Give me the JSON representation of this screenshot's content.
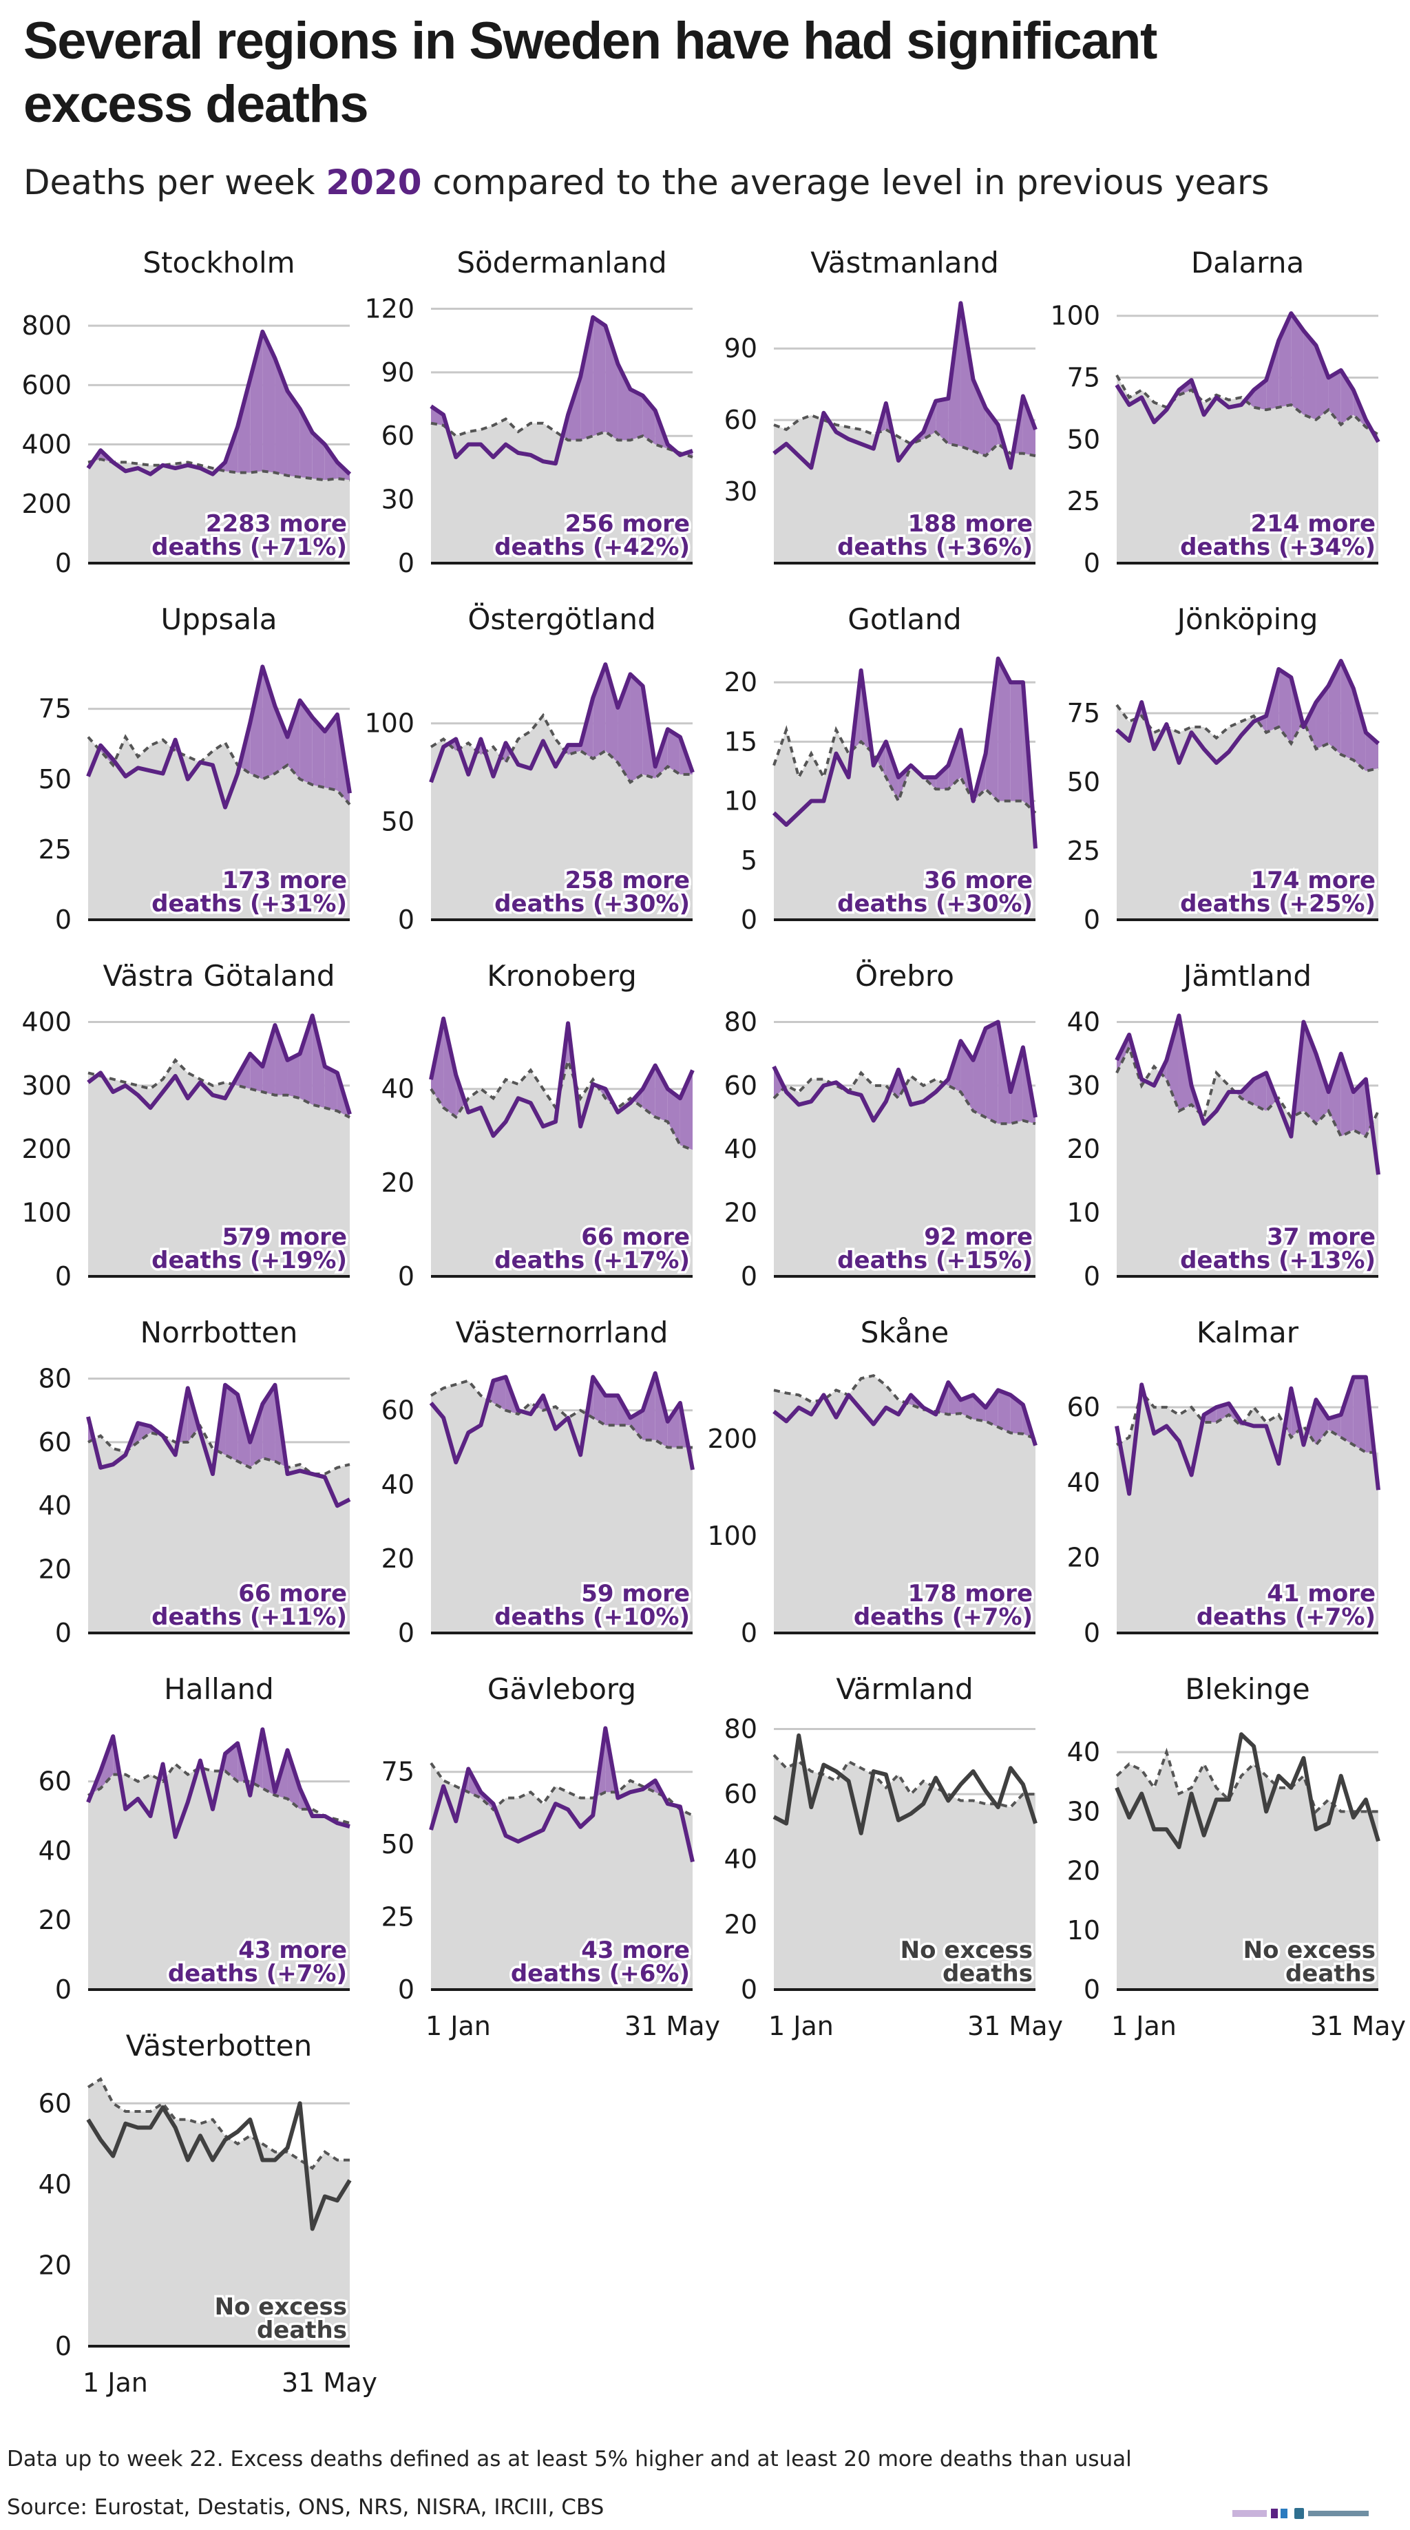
{
  "title": "Several regions in Sweden have had significant excess deaths",
  "subtitle": {
    "prefix": "Deaths per week ",
    "highlight": "2020",
    "suffix": " compared to the average level in previous years"
  },
  "footnote": "Data up to week 22. Excess deaths defined as at least 5% higher and at least 20 more deaths than usual",
  "source": "Source: Eurostat, Destatis, ONS, NRS, NISRA, IRCIII, CBS",
  "colors": {
    "excess_line": "#5b2383",
    "excess_fill": "#a77fc0",
    "normal_line": "#404040",
    "baseline_fill": "#d9d9d9",
    "baseline_line": "#555555",
    "grid": "#c8c8c8"
  },
  "chart_data": [
    {
      "type": "area",
      "region": "Stockholm",
      "excess": true,
      "label_line1": "2283 more",
      "label_line2": "deaths (+71%)",
      "x_labels": [],
      "yticks": [
        0,
        200,
        400,
        600,
        800
      ],
      "ylim": [
        0,
        900
      ],
      "values": [
        320,
        380,
        340,
        310,
        320,
        300,
        330,
        320,
        330,
        320,
        300,
        340,
        460,
        620,
        780,
        690,
        580,
        520,
        440,
        400,
        340,
        300
      ],
      "baseline": [
        340,
        350,
        340,
        340,
        335,
        330,
        330,
        335,
        340,
        330,
        320,
        310,
        305,
        305,
        310,
        305,
        295,
        290,
        285,
        280,
        285,
        280
      ]
    },
    {
      "type": "area",
      "region": "Södermanland",
      "excess": true,
      "label_line1": "256 more",
      "label_line2": "deaths (+42%)",
      "x_labels": [],
      "yticks": [
        0,
        30,
        60,
        90,
        120
      ],
      "ylim": [
        0,
        126
      ],
      "values": [
        74,
        70,
        50,
        56,
        56,
        50,
        56,
        52,
        51,
        48,
        47,
        70,
        88,
        116,
        112,
        94,
        82,
        79,
        72,
        56,
        51,
        53
      ],
      "baseline": [
        66,
        65,
        60,
        62,
        63,
        65,
        68,
        62,
        66,
        66,
        62,
        58,
        58,
        60,
        62,
        58,
        58,
        60,
        56,
        54,
        52,
        50
      ]
    },
    {
      "type": "area",
      "region": "Västmanland",
      "excess": true,
      "label_line1": "188 more",
      "label_line2": "deaths (+36%)",
      "x_labels": [],
      "yticks": [
        30,
        60,
        90
      ],
      "ylim": [
        0,
        112
      ],
      "values": [
        46,
        50,
        45,
        40,
        63,
        55,
        52,
        50,
        48,
        67,
        43,
        50,
        55,
        68,
        69,
        109,
        77,
        65,
        58,
        40,
        70,
        56
      ],
      "baseline": [
        58,
        56,
        60,
        62,
        60,
        58,
        57,
        56,
        54,
        56,
        53,
        50,
        52,
        55,
        50,
        49,
        47,
        45,
        50,
        46,
        46,
        45
      ]
    },
    {
      "type": "area",
      "region": "Dalarna",
      "excess": true,
      "label_line1": "214 more",
      "label_line2": "deaths (+34%)",
      "x_labels": [],
      "yticks": [
        0,
        25,
        50,
        75,
        100
      ],
      "ylim": [
        0,
        108
      ],
      "values": [
        72,
        64,
        67,
        57,
        62,
        70,
        74,
        60,
        67,
        63,
        64,
        70,
        74,
        90,
        101,
        94,
        88,
        75,
        78,
        70,
        58,
        49
      ],
      "baseline": [
        76,
        67,
        70,
        65,
        63,
        68,
        70,
        65,
        68,
        66,
        67,
        63,
        62,
        63,
        64,
        60,
        58,
        62,
        56,
        60,
        55,
        52
      ]
    },
    {
      "type": "area",
      "region": "Uppsala",
      "excess": true,
      "label_line1": "173 more",
      "label_line2": "deaths (+31%)",
      "x_labels": [],
      "yticks": [
        0,
        25,
        50,
        75
      ],
      "ylim": [
        0,
        95
      ],
      "values": [
        51,
        62,
        57,
        51,
        54,
        53,
        52,
        64,
        50,
        56,
        55,
        40,
        52,
        70,
        90,
        76,
        65,
        78,
        72,
        67,
        73,
        45
      ],
      "baseline": [
        65,
        60,
        55,
        65,
        58,
        62,
        64,
        60,
        58,
        56,
        60,
        63,
        55,
        52,
        50,
        52,
        55,
        50,
        48,
        47,
        46,
        41
      ]
    },
    {
      "type": "area",
      "region": "Östergötland",
      "excess": true,
      "label_line1": "258 more",
      "label_line2": "deaths (+30%)",
      "x_labels": [],
      "yticks": [
        0,
        50,
        100
      ],
      "ylim": [
        0,
        136
      ],
      "values": [
        70,
        88,
        92,
        74,
        92,
        73,
        90,
        79,
        77,
        91,
        78,
        89,
        89,
        113,
        130,
        108,
        125,
        119,
        78,
        97,
        93,
        75
      ],
      "baseline": [
        88,
        92,
        86,
        90,
        84,
        88,
        80,
        92,
        96,
        104,
        92,
        84,
        86,
        82,
        86,
        80,
        70,
        74,
        72,
        78,
        74,
        74
      ]
    },
    {
      "type": "area",
      "region": "Gotland",
      "excess": true,
      "label_line1": "36 more",
      "label_line2": "deaths (+30%)",
      "x_labels": [],
      "yticks": [
        0,
        5,
        10,
        15,
        20
      ],
      "ylim": [
        0,
        22.5
      ],
      "values": [
        9,
        8,
        9,
        10,
        10,
        14,
        12,
        21,
        13,
        15,
        12,
        13,
        12,
        12,
        13,
        16,
        10,
        14,
        22,
        20,
        20,
        6
      ],
      "baseline": [
        13,
        16,
        12,
        14,
        12,
        16,
        14,
        15,
        14,
        12,
        10,
        13,
        12,
        11,
        11,
        12,
        10,
        11,
        10,
        10,
        10,
        9
      ]
    },
    {
      "type": "area",
      "region": "Jönköping",
      "excess": true,
      "label_line1": "174 more",
      "label_line2": "deaths (+25%)",
      "x_labels": [],
      "yticks": [
        0,
        25,
        50,
        75
      ],
      "ylim": [
        0,
        97
      ],
      "values": [
        69,
        65,
        79,
        62,
        71,
        57,
        68,
        62,
        57,
        61,
        67,
        72,
        74,
        91,
        88,
        70,
        79,
        85,
        94,
        84,
        68,
        64
      ],
      "baseline": [
        78,
        72,
        74,
        68,
        70,
        68,
        70,
        70,
        66,
        70,
        72,
        74,
        68,
        70,
        64,
        72,
        62,
        64,
        60,
        58,
        54,
        55
      ]
    },
    {
      "type": "area",
      "region": "Västra Götaland",
      "excess": true,
      "label_line1": "579 more",
      "label_line2": "deaths (+19%)",
      "x_labels": [],
      "yticks": [
        0,
        100,
        200,
        300,
        400
      ],
      "ylim": [
        0,
        420
      ],
      "values": [
        305,
        320,
        290,
        300,
        285,
        265,
        290,
        315,
        280,
        305,
        285,
        280,
        315,
        350,
        330,
        395,
        340,
        350,
        410,
        330,
        320,
        255
      ],
      "baseline": [
        320,
        315,
        310,
        305,
        300,
        295,
        310,
        340,
        320,
        310,
        300,
        305,
        300,
        295,
        290,
        285,
        285,
        280,
        270,
        265,
        260,
        250
      ]
    },
    {
      "type": "area",
      "region": "Kronoberg",
      "excess": true,
      "label_line1": "66 more",
      "label_line2": "deaths (+17%)",
      "x_labels": [],
      "yticks": [
        0,
        20,
        40
      ],
      "ylim": [
        0,
        57
      ],
      "values": [
        42,
        55,
        43,
        35,
        36,
        30,
        33,
        38,
        37,
        32,
        33,
        54,
        32,
        41,
        40,
        35,
        37,
        40,
        45,
        40,
        38,
        44
      ],
      "baseline": [
        40,
        36,
        34,
        38,
        40,
        38,
        42,
        41,
        44,
        40,
        36,
        46,
        38,
        42,
        38,
        36,
        38,
        36,
        34,
        33,
        28,
        27
      ]
    },
    {
      "type": "area",
      "region": "Örebro",
      "excess": true,
      "label_line1": "92 more",
      "label_line2": "deaths (+15%)",
      "x_labels": [],
      "yticks": [
        0,
        20,
        40,
        60,
        80
      ],
      "ylim": [
        0,
        84
      ],
      "values": [
        66,
        58,
        54,
        55,
        60,
        61,
        58,
        57,
        49,
        55,
        65,
        54,
        55,
        58,
        62,
        74,
        68,
        78,
        80,
        58,
        72,
        50
      ],
      "baseline": [
        56,
        60,
        58,
        62,
        62,
        60,
        58,
        64,
        60,
        60,
        56,
        63,
        60,
        62,
        60,
        58,
        52,
        50,
        48,
        48,
        49,
        48
      ]
    },
    {
      "type": "area",
      "region": "Jämtland",
      "excess": true,
      "label_line1": "37 more",
      "label_line2": "deaths (+13%)",
      "x_labels": [],
      "yticks": [
        0,
        10,
        20,
        30,
        40
      ],
      "ylim": [
        0,
        42
      ],
      "values": [
        34,
        38,
        31,
        30,
        34,
        41,
        30,
        24,
        26,
        29,
        29,
        31,
        32,
        27,
        22,
        40,
        35,
        29,
        35,
        29,
        31,
        16
      ],
      "baseline": [
        32,
        36,
        30,
        33,
        31,
        26,
        27,
        25,
        32,
        30,
        28,
        27,
        26,
        28,
        25,
        26,
        24,
        26,
        22,
        23,
        22,
        26
      ]
    },
    {
      "type": "area",
      "region": "Norrbotten",
      "excess": true,
      "label_line1": "66 more",
      "label_line2": "deaths (+11%)",
      "x_labels": [],
      "yticks": [
        0,
        20,
        40,
        60,
        80
      ],
      "ylim": [
        0,
        84
      ],
      "values": [
        68,
        52,
        53,
        56,
        66,
        65,
        62,
        56,
        77,
        63,
        50,
        78,
        75,
        60,
        72,
        78,
        50,
        51,
        50,
        49,
        40,
        42
      ],
      "baseline": [
        60,
        62,
        58,
        57,
        60,
        63,
        62,
        60,
        60,
        65,
        58,
        56,
        54,
        52,
        55,
        54,
        52,
        53,
        50,
        50,
        52,
        53
      ]
    },
    {
      "type": "area",
      "region": "Västernorrland",
      "excess": true,
      "label_line1": "59 more",
      "label_line2": "deaths (+10%)",
      "x_labels": [],
      "yticks": [
        0,
        20,
        40,
        60
      ],
      "ylim": [
        0,
        72
      ],
      "values": [
        62,
        58,
        46,
        54,
        56,
        68,
        69,
        60,
        59,
        64,
        55,
        58,
        48,
        69,
        64,
        64,
        58,
        60,
        70,
        57,
        62,
        44
      ],
      "baseline": [
        64,
        66,
        67,
        68,
        64,
        62,
        60,
        59,
        62,
        60,
        61,
        58,
        60,
        58,
        56,
        56,
        56,
        52,
        52,
        50,
        50,
        50
      ]
    },
    {
      "type": "area",
      "region": "Skåne",
      "excess": true,
      "label_line1": "178 more",
      "label_line2": "deaths (+7%)",
      "x_labels": [],
      "yticks": [
        0,
        100,
        200
      ],
      "ylim": [
        0,
        275
      ],
      "values": [
        228,
        218,
        232,
        225,
        245,
        222,
        245,
        230,
        215,
        232,
        225,
        245,
        232,
        225,
        258,
        240,
        245,
        232,
        250,
        245,
        235,
        193
      ],
      "baseline": [
        250,
        247,
        245,
        238,
        240,
        250,
        245,
        262,
        265,
        255,
        240,
        235,
        230,
        228,
        225,
        226,
        220,
        218,
        212,
        206,
        205,
        200
      ]
    },
    {
      "type": "area",
      "region": "Kalmar",
      "excess": true,
      "label_line1": "41 more",
      "label_line2": "deaths (+7%)",
      "x_labels": [],
      "yticks": [
        0,
        20,
        40,
        60
      ],
      "ylim": [
        0,
        71
      ],
      "values": [
        55,
        37,
        66,
        53,
        55,
        51,
        42,
        58,
        60,
        61,
        56,
        55,
        55,
        45,
        65,
        50,
        62,
        57,
        58,
        68,
        68,
        38
      ],
      "baseline": [
        50,
        52,
        64,
        60,
        60,
        58,
        60,
        56,
        56,
        58,
        55,
        60,
        56,
        58,
        52,
        55,
        50,
        54,
        52,
        50,
        48,
        48
      ]
    },
    {
      "type": "area",
      "region": "Halland",
      "excess": true,
      "label_line1": "43 more",
      "label_line2": "deaths (+7%)",
      "x_labels": [],
      "yticks": [
        0,
        20,
        40,
        60
      ],
      "ylim": [
        0,
        77
      ],
      "values": [
        54,
        63,
        73,
        52,
        55,
        50,
        65,
        44,
        54,
        66,
        52,
        68,
        71,
        56,
        75,
        57,
        69,
        58,
        50,
        50,
        48,
        47
      ],
      "baseline": [
        56,
        58,
        62,
        62,
        60,
        62,
        60,
        65,
        62,
        64,
        63,
        63,
        60,
        60,
        58,
        56,
        55,
        52,
        52,
        50,
        49,
        48
      ]
    },
    {
      "type": "area",
      "region": "Gävleborg",
      "excess": true,
      "label_line1": "43 more",
      "label_line2": "deaths (+6%)",
      "x_labels": [
        "1 Jan",
        "31 May"
      ],
      "yticks": [
        0,
        25,
        50,
        75
      ],
      "ylim": [
        0,
        92
      ],
      "values": [
        55,
        70,
        58,
        76,
        68,
        64,
        53,
        51,
        53,
        55,
        64,
        62,
        56,
        60,
        90,
        66,
        68,
        69,
        72,
        64,
        63,
        44
      ],
      "baseline": [
        78,
        72,
        70,
        68,
        66,
        62,
        66,
        66,
        68,
        64,
        70,
        68,
        66,
        66,
        68,
        68,
        72,
        70,
        68,
        66,
        62,
        60
      ]
    },
    {
      "type": "area",
      "region": "Värmland",
      "excess": false,
      "label_line1": "No excess",
      "label_line2": "deaths",
      "x_labels": [
        "1 Jan",
        "31 May"
      ],
      "yticks": [
        0,
        20,
        40,
        60,
        80
      ],
      "ylim": [
        0,
        82
      ],
      "values": [
        53,
        51,
        78,
        56,
        69,
        67,
        64,
        48,
        67,
        66,
        52,
        54,
        57,
        65,
        58,
        63,
        67,
        61,
        56,
        68,
        63,
        51
      ],
      "baseline": [
        72,
        68,
        70,
        67,
        66,
        64,
        70,
        68,
        66,
        62,
        66,
        60,
        64,
        62,
        60,
        58,
        58,
        57,
        57,
        56,
        60,
        60
      ]
    },
    {
      "type": "area",
      "region": "Blekinge",
      "excess": false,
      "label_line1": "No excess",
      "label_line2": "deaths",
      "x_labels": [
        "1 Jan",
        "31 May"
      ],
      "yticks": [
        0,
        10,
        20,
        30,
        40
      ],
      "ylim": [
        0,
        45
      ],
      "values": [
        34,
        29,
        33,
        27,
        27,
        24,
        33,
        26,
        32,
        32,
        43,
        41,
        30,
        36,
        34,
        39,
        27,
        28,
        36,
        29,
        32,
        25
      ],
      "baseline": [
        36,
        38,
        37,
        34,
        40,
        33,
        34,
        38,
        34,
        32,
        36,
        38,
        36,
        34,
        34,
        36,
        30,
        32,
        30,
        30,
        30,
        30
      ]
    },
    {
      "type": "area",
      "region": "Västerbotten",
      "excess": false,
      "label_line1": "No excess",
      "label_line2": "deaths",
      "x_labels": [
        "1 Jan",
        "31 May"
      ],
      "yticks": [
        0,
        20,
        40,
        60
      ],
      "ylim": [
        0,
        66
      ],
      "values": [
        56,
        51,
        47,
        55,
        54,
        54,
        59,
        54,
        46,
        52,
        46,
        51,
        53,
        56,
        46,
        46,
        49,
        60,
        29,
        37,
        36,
        41
      ],
      "baseline": [
        64,
        66,
        60,
        58,
        58,
        58,
        60,
        56,
        56,
        55,
        56,
        52,
        50,
        52,
        50,
        48,
        48,
        46,
        44,
        48,
        46,
        46
      ]
    }
  ]
}
